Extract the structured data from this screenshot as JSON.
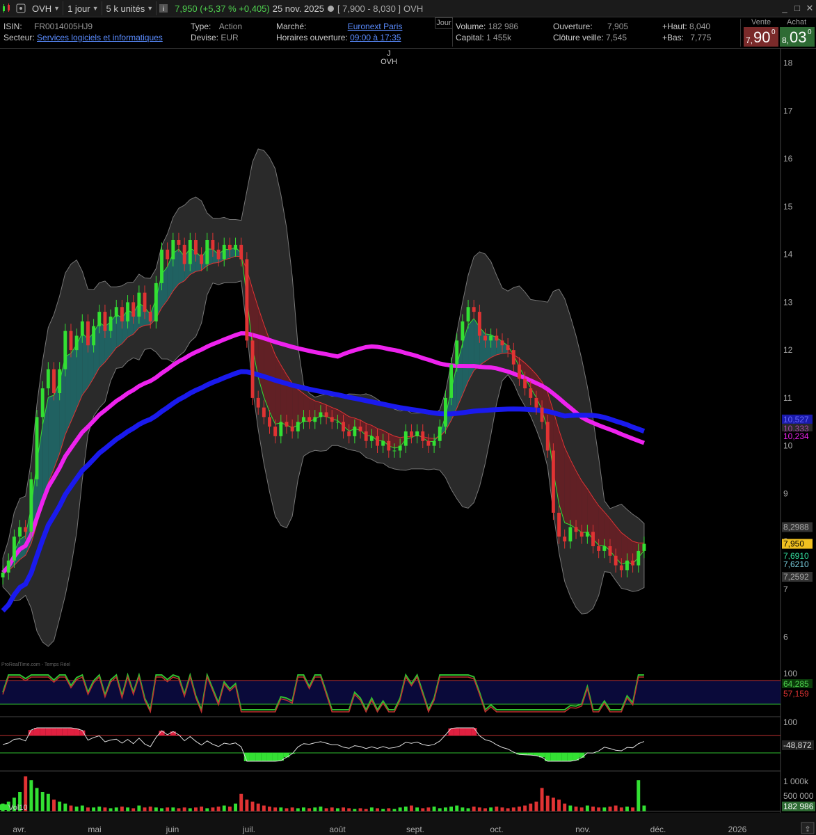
{
  "toolbar": {
    "symbol": "OVH",
    "period": "1 jour",
    "units": "5 k unités",
    "price_info": "7,950 (+5,37 % +0,405)",
    "date": "25 nov. 2025",
    "range": "[ 7,900 - 8,030 ]",
    "ticker": "OVH"
  },
  "info": {
    "isin_label": "ISIN:",
    "isin": "FR0014005HJ9",
    "sector_label": "Secteur:",
    "sector": "Services logiciels et informatiques",
    "type_label": "Type:",
    "type": "Action",
    "currency_label": "Devise:",
    "currency": "EUR",
    "market_label": "Marché:",
    "market": "Euronext Paris",
    "hours_label": "Horaires ouverture:",
    "hours": "09:00 à 17:35",
    "period_btn": "Jour",
    "volume_label": "Volume:",
    "volume": "182 986",
    "capital_label": "Capital:",
    "capital": "1 455k",
    "open_label": "Ouverture:",
    "open": "7,905",
    "prev_close_label": "Clôture veille:",
    "prev_close": "7,545",
    "high_label": "+Haut:",
    "high": "8,040",
    "low_label": "+Bas:",
    "low": "7,775",
    "sell_label": "Vente",
    "sell_int": "7,",
    "sell_dec": "90",
    "sell_sup": "0",
    "buy_label": "Achat",
    "buy_int": "8,",
    "buy_dec": "03",
    "buy_sup": "0"
  },
  "chart_data": {
    "type": "candlestick",
    "marker": {
      "letter": "J",
      "label": "OVH"
    },
    "y_ticks": [
      "18",
      "17",
      "16",
      "15",
      "14",
      "13",
      "12",
      "11",
      "10",
      "9",
      "8",
      "7",
      "6"
    ],
    "y_range": [
      5.5,
      18.3
    ],
    "x_labels": [
      "avr.",
      "mai",
      "juin",
      "juil.",
      "août",
      "sept.",
      "oct.",
      "nov.",
      "déc.",
      "2026"
    ],
    "price_labels": {
      "bb_upper": "8,2988",
      "last": "7,950",
      "ema_fast": "7,6910",
      "ema_slow": "7,6210",
      "bb_lower": "7,2592",
      "ma_long": "10,234",
      "ma_long2": "10,527",
      "ma_long3": "10,333"
    },
    "closes": [
      7.35,
      7.6,
      8.1,
      8.3,
      8.2,
      9.3,
      10.6,
      11.2,
      11.6,
      11.1,
      11.6,
      12.4,
      12.0,
      12.3,
      12.6,
      12.1,
      12.5,
      12.8,
      12.4,
      12.7,
      12.9,
      12.6,
      13.0,
      12.7,
      13.2,
      12.8,
      12.6,
      13.4,
      14.1,
      13.9,
      14.3,
      14.2,
      13.8,
      14.3,
      14.0,
      13.8,
      14.3,
      14.1,
      13.9,
      14.2,
      14.1,
      14.2,
      13.9,
      12.2,
      11.0,
      10.8,
      10.6,
      10.4,
      10.2,
      10.5,
      10.4,
      10.3,
      10.5,
      10.6,
      10.5,
      10.6,
      10.7,
      10.6,
      10.5,
      10.5,
      10.3,
      10.2,
      10.4,
      10.3,
      10.1,
      10.2,
      10.0,
      10.1,
      9.9,
      9.9,
      10.0,
      10.3,
      10.2,
      10.3,
      10.1,
      10.0,
      10.1,
      10.4,
      11.0,
      11.7,
      12.2,
      12.6,
      12.9,
      12.8,
      12.3,
      12.2,
      12.3,
      12.2,
      12.1,
      12.0,
      11.7,
      11.4,
      11.2,
      11.0,
      10.8,
      10.5,
      9.9,
      8.6,
      8.1,
      8.0,
      8.3,
      8.2,
      8.1,
      8.2,
      7.9,
      7.8,
      7.9,
      7.7,
      7.5,
      7.4,
      7.6,
      7.5,
      7.8,
      7.95
    ],
    "volumes": [
      0.2,
      0.25,
      0.35,
      0.5,
      0.9,
      0.8,
      0.6,
      0.5,
      0.45,
      0.3,
      0.25,
      0.2,
      0.15,
      0.12,
      0.15,
      0.1,
      0.1,
      0.12,
      0.1,
      0.08,
      0.1,
      0.12,
      0.1,
      0.08,
      0.15,
      0.1,
      0.12,
      0.1,
      0.08,
      0.1,
      0.1,
      0.08,
      0.1,
      0.08,
      0.1,
      0.12,
      0.08,
      0.1,
      0.12,
      0.15,
      0.12,
      0.2,
      0.45,
      0.3,
      0.25,
      0.2,
      0.15,
      0.12,
      0.1,
      0.1,
      0.08,
      0.1,
      0.08,
      0.1,
      0.08,
      0.1,
      0.12,
      0.08,
      0.1,
      0.08,
      0.1,
      0.08,
      0.06,
      0.08,
      0.06,
      0.1,
      0.08,
      0.06,
      0.08,
      0.06,
      0.1,
      0.12,
      0.15,
      0.1,
      0.08,
      0.1,
      0.12,
      0.08,
      0.1,
      0.12,
      0.15,
      0.1,
      0.08,
      0.12,
      0.1,
      0.08,
      0.1,
      0.12,
      0.1,
      0.08,
      0.1,
      0.12,
      0.15,
      0.2,
      0.25,
      0.6,
      0.4,
      0.35,
      0.3,
      0.2,
      0.15,
      0.12,
      0.1,
      0.15,
      0.12,
      0.1,
      0.1,
      0.12,
      0.15,
      0.1,
      0.12,
      0.1,
      0.8,
      0.15
    ],
    "stoch": {
      "upper_label": "100",
      "k_label": "64,285",
      "d_label": "57,159"
    },
    "osc": {
      "upper_label": "100",
      "value_label": "-48,872"
    },
    "volume_panel": {
      "name": "Vol10",
      "label_1m": "1 000k",
      "label_500k": "500 000",
      "last": "182 986"
    },
    "watermark": "ProRealTime.com - Temps Réel"
  },
  "colors": {
    "bull": "#33e033",
    "bear": "#e03333",
    "ma_long": "#ee22ee",
    "ma_long2": "#1a1aee",
    "band": "#2a2a2a",
    "accent_green": "#4fd14f"
  }
}
